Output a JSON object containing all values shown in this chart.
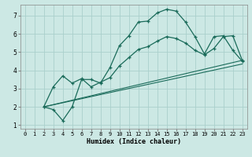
{
  "xlabel": "Humidex (Indice chaleur)",
  "bg_color": "#cce8e4",
  "grid_color": "#aad0cc",
  "line_color": "#1a6b5a",
  "xlim": [
    -0.5,
    23.5
  ],
  "ylim": [
    0.8,
    7.6
  ],
  "xticks": [
    0,
    1,
    2,
    3,
    4,
    5,
    6,
    7,
    8,
    9,
    10,
    11,
    12,
    13,
    14,
    15,
    16,
    17,
    18,
    19,
    20,
    21,
    22,
    23
  ],
  "yticks": [
    1,
    2,
    3,
    4,
    5,
    6,
    7
  ],
  "line1_x": [
    2,
    3,
    4,
    5,
    6,
    7,
    8,
    9,
    10,
    11,
    12,
    13,
    14,
    15,
    16,
    17,
    18,
    19,
    20,
    21,
    22,
    23
  ],
  "line1_y": [
    2.0,
    1.85,
    1.25,
    2.0,
    3.5,
    3.5,
    3.3,
    4.15,
    5.35,
    5.9,
    6.65,
    6.7,
    7.15,
    7.35,
    7.25,
    6.65,
    5.85,
    4.9,
    5.85,
    5.9,
    5.1,
    4.5
  ],
  "line2_x": [
    2,
    3,
    4,
    5,
    6,
    7,
    8,
    9,
    10,
    11,
    12,
    13,
    14,
    15,
    16,
    17,
    18,
    19,
    20,
    21,
    22,
    23
  ],
  "line2_y": [
    2.0,
    3.1,
    3.7,
    3.3,
    3.55,
    3.1,
    3.35,
    3.6,
    4.25,
    4.7,
    5.15,
    5.3,
    5.6,
    5.85,
    5.75,
    5.5,
    5.1,
    4.85,
    5.2,
    5.85,
    5.9,
    4.55
  ],
  "line3_x": [
    2,
    23
  ],
  "line3_y": [
    2.0,
    4.35
  ],
  "line4_x": [
    2,
    23
  ],
  "line4_y": [
    2.0,
    4.55
  ]
}
